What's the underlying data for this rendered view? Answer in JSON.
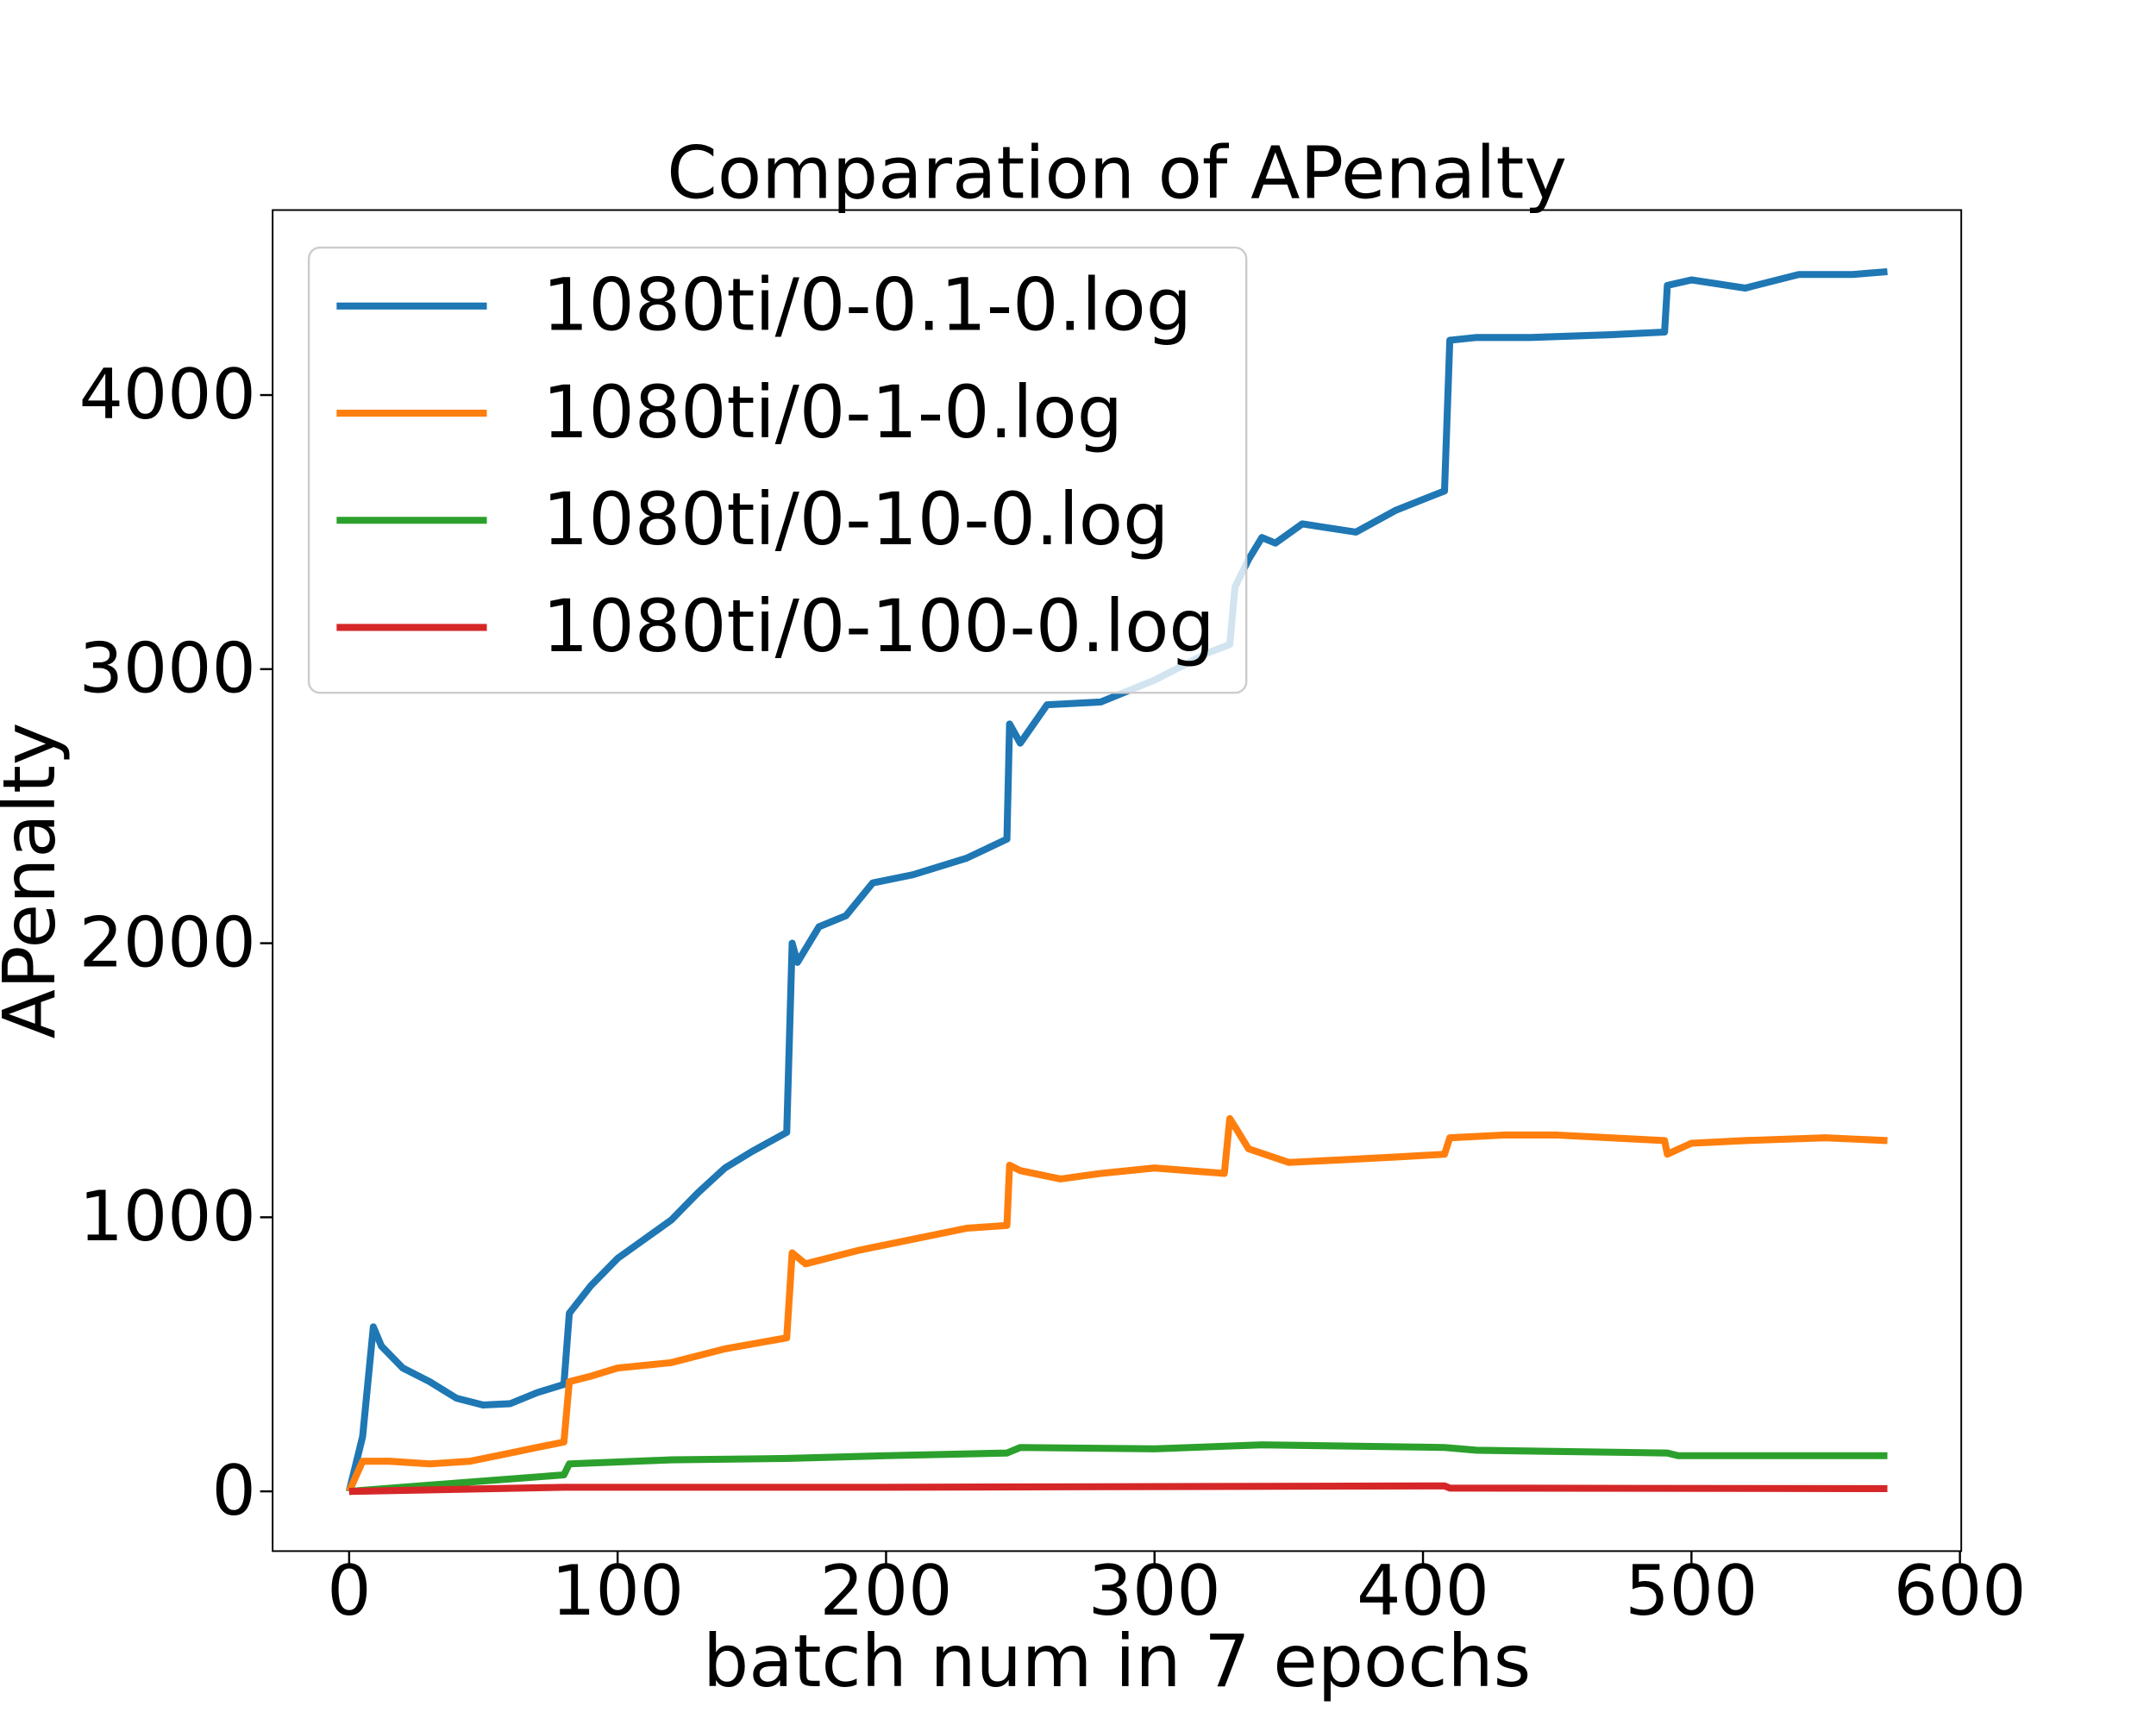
{
  "chart_data": {
    "type": "line",
    "title": "Comparation of APenalty",
    "x_label": "batch num in 7 epochs",
    "y_label": "APenalty",
    "xlim": [
      -28.5,
      600.5
    ],
    "ylim": [
      -218,
      4675
    ],
    "xticks": [
      0,
      100,
      200,
      300,
      400,
      500,
      600
    ],
    "yticks": [
      0,
      1000,
      2000,
      3000,
      4000
    ],
    "legend": "upper left",
    "grid": false,
    "series": [
      {
        "name": "1080ti/0-0.1-0.log",
        "color": "#1f77b4",
        "x": [
          0,
          5,
          9,
          12,
          20,
          30,
          40,
          50,
          60,
          70,
          80,
          82,
          90,
          100,
          110,
          120,
          130,
          140,
          150,
          163,
          165,
          167,
          175,
          185,
          195,
          210,
          230,
          245,
          246,
          250,
          260,
          280,
          300,
          320,
          328,
          330,
          335,
          340,
          345,
          355,
          375,
          390,
          408,
          410,
          420,
          440,
          470,
          490,
          491,
          500,
          520,
          540,
          560,
          573
        ],
        "values": [
          0,
          200,
          600,
          530,
          450,
          400,
          340,
          315,
          320,
          360,
          390,
          650,
          750,
          850,
          920,
          990,
          1090,
          1180,
          1240,
          1310,
          2000,
          1930,
          2060,
          2100,
          2220,
          2250,
          2310,
          2380,
          2800,
          2730,
          2870,
          2880,
          2960,
          3060,
          3090,
          3300,
          3400,
          3480,
          3460,
          3530,
          3500,
          3580,
          3650,
          4200,
          4210,
          4210,
          4220,
          4230,
          4400,
          4420,
          4390,
          4440,
          4440,
          4450
        ]
      },
      {
        "name": "1080ti/0-1-0.log",
        "color": "#ff7f0e",
        "x": [
          0,
          5,
          15,
          30,
          45,
          60,
          70,
          80,
          82,
          90,
          100,
          120,
          140,
          163,
          165,
          170,
          190,
          210,
          230,
          245,
          246,
          250,
          265,
          280,
          300,
          326,
          328,
          330,
          335,
          350,
          370,
          390,
          408,
          410,
          430,
          450,
          490,
          491,
          500,
          520,
          550,
          573
        ],
        "values": [
          0,
          110,
          110,
          100,
          110,
          140,
          160,
          180,
          400,
          420,
          450,
          470,
          520,
          560,
          870,
          830,
          880,
          920,
          960,
          970,
          1190,
          1170,
          1140,
          1160,
          1180,
          1160,
          1360,
          1330,
          1250,
          1200,
          1210,
          1220,
          1230,
          1290,
          1300,
          1300,
          1280,
          1230,
          1270,
          1280,
          1290,
          1280
        ]
      },
      {
        "name": "1080ti/0-10-0.log",
        "color": "#2ca02c",
        "x": [
          0,
          40,
          80,
          82,
          120,
          163,
          200,
          245,
          250,
          300,
          340,
          408,
          420,
          491,
          495,
          573
        ],
        "values": [
          0,
          30,
          60,
          100,
          115,
          120,
          130,
          140,
          160,
          155,
          170,
          160,
          150,
          140,
          130,
          130
        ]
      },
      {
        "name": "1080ti/0-100-0.log",
        "color": "#d62728",
        "x": [
          0,
          80,
          200,
          408,
          410,
          573
        ],
        "values": [
          0,
          15,
          15,
          20,
          12,
          10
        ]
      }
    ]
  }
}
